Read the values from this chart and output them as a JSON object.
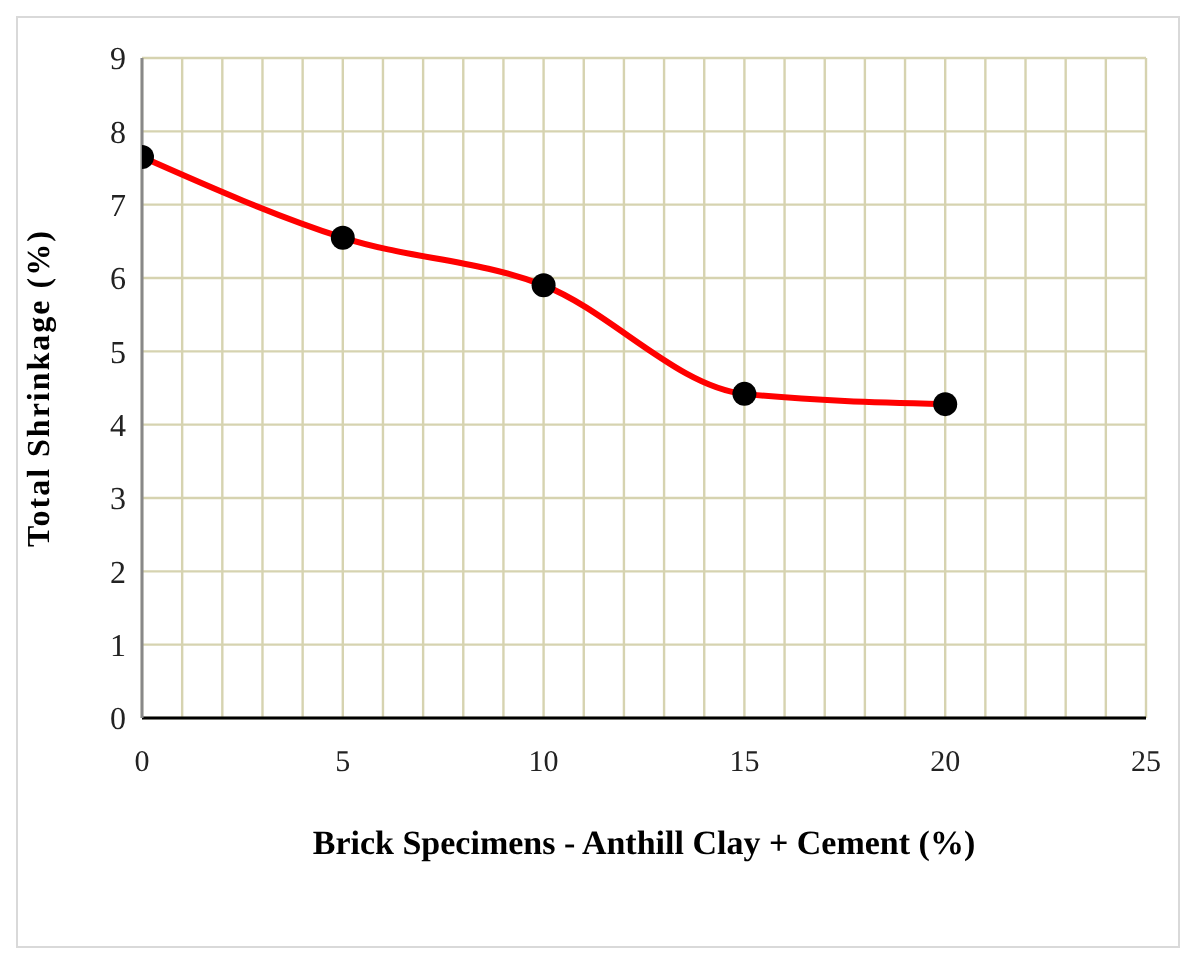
{
  "chart_data": {
    "type": "line",
    "xlabel": "Brick Specimens - Anthill Clay + Cement (%)",
    "ylabel": "Total Shrinkage (%)",
    "x": [
      0,
      5,
      10,
      15,
      20
    ],
    "series": [
      {
        "color": "#ff0000",
        "values": [
          7.65,
          6.55,
          5.9,
          4.42,
          4.28
        ]
      }
    ],
    "xlim": [
      0,
      25
    ],
    "ylim": [
      0,
      9
    ],
    "xticks": [
      0,
      {
        "value": 1,
        "label": null
      },
      {
        "value": 2,
        "label": null
      },
      {
        "value": 3,
        "label": null
      },
      {
        "value": 4,
        "label": null
      },
      5,
      {
        "value": 6,
        "label": null
      },
      {
        "value": 7,
        "label": null
      },
      {
        "value": 8,
        "label": null
      },
      {
        "value": 9,
        "label": null
      },
      10,
      {
        "value": 11,
        "label": null
      },
      {
        "value": 12,
        "label": null
      },
      {
        "value": 13,
        "label": null
      },
      {
        "value": 14,
        "label": null
      },
      15,
      {
        "value": 16,
        "label": null
      },
      {
        "value": 17,
        "label": null
      },
      {
        "value": 18,
        "label": null
      },
      {
        "value": 19,
        "label": null
      },
      20,
      {
        "value": 21,
        "label": null
      },
      {
        "value": 22,
        "label": null
      },
      {
        "value": 23,
        "label": null
      },
      {
        "value": 24,
        "label": null
      },
      25
    ],
    "yticks": [
      0,
      1,
      2,
      3,
      4,
      5,
      6,
      7,
      8,
      9
    ],
    "grid": true,
    "marker": "circle",
    "line_style": "solid"
  }
}
